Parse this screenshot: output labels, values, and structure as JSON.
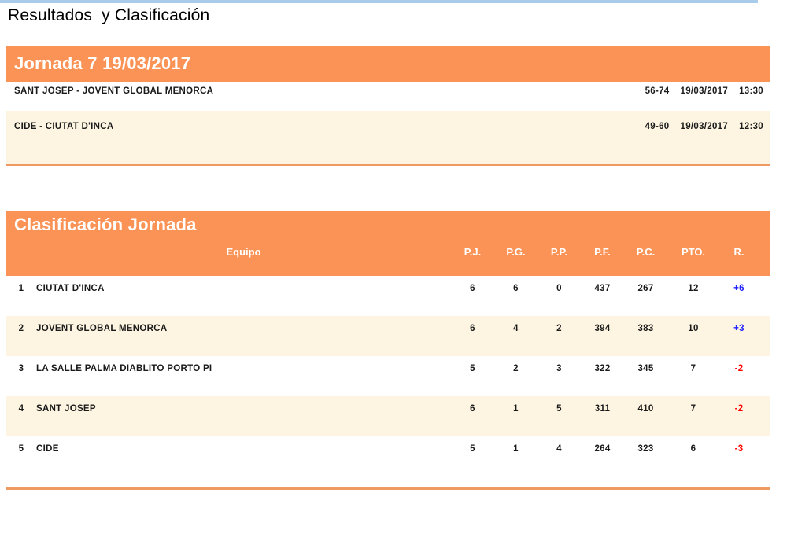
{
  "page": {
    "title": "Resultados  y Clasificación"
  },
  "results": {
    "header": "Jornada 7 19/03/2017",
    "matches": [
      {
        "teams": "SANT JOSEP - JOVENT GLOBAL MENORCA",
        "score": "56-74",
        "date": "19/03/2017",
        "time": "13:30"
      },
      {
        "teams": "CIDE - CIUTAT D'INCA",
        "score": "49-60",
        "date": "19/03/2017",
        "time": "12:30"
      }
    ]
  },
  "standings": {
    "header": "Clasificación Jornada",
    "columns": {
      "equipo": "Equipo",
      "pj": "P.J.",
      "pg": "P.G.",
      "pp": "P.P.",
      "pf": "P.F.",
      "pc": "P.C.",
      "pto": "PTO.",
      "r": "R."
    },
    "rows": [
      {
        "rank": "1",
        "team": "CIUTAT D'INCA",
        "pj": "6",
        "pg": "6",
        "pp": "0",
        "pf": "437",
        "pc": "267",
        "pto": "12",
        "r": "+6"
      },
      {
        "rank": "2",
        "team": "JOVENT GLOBAL MENORCA",
        "pj": "6",
        "pg": "4",
        "pp": "2",
        "pf": "394",
        "pc": "383",
        "pto": "10",
        "r": "+3"
      },
      {
        "rank": "3",
        "team": "LA SALLE PALMA DIABLITO PORTO PI",
        "pj": "5",
        "pg": "2",
        "pp": "3",
        "pf": "322",
        "pc": "345",
        "pto": "7",
        "r": "-2"
      },
      {
        "rank": "4",
        "team": "SANT JOSEP",
        "pj": "6",
        "pg": "1",
        "pp": "5",
        "pf": "311",
        "pc": "410",
        "pto": "7",
        "r": "-2"
      },
      {
        "rank": "5",
        "team": "CIDE",
        "pj": "5",
        "pg": "1",
        "pp": "4",
        "pf": "264",
        "pc": "323",
        "pto": "6",
        "r": "-3"
      }
    ]
  },
  "colors": {
    "accent_orange": "#FA9355",
    "divider_orange": "#EF9A63",
    "row_cream": "#FDF5E1",
    "top_line_blue": "#A9CCEB",
    "rebound_positive": "#2121FF",
    "rebound_negative": "#FF0000"
  }
}
